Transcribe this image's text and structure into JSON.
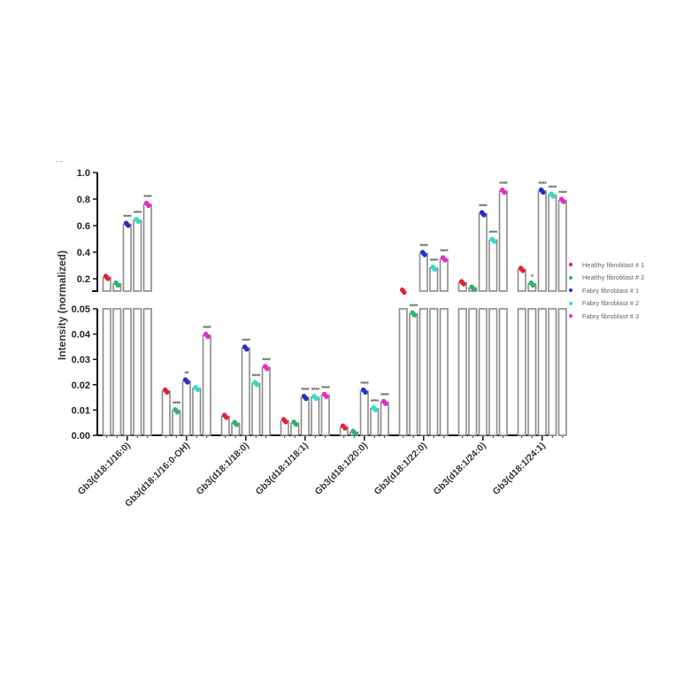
{
  "chart_data": {
    "type": "bar",
    "title": "",
    "xlabel": "",
    "ylabel": "Intensity (normalized)",
    "y_axis_break": {
      "lower_range": [
        0,
        0.05
      ],
      "upper_range": [
        0.1,
        1.0
      ],
      "lower_ticks": [
        "0.00",
        "0.01",
        "0.02",
        "0.03",
        "0.04",
        "0.05"
      ],
      "upper_ticks": [
        "0.2",
        "0.4",
        "0.6",
        "0.8",
        "1.0"
      ]
    },
    "categories": [
      "Gb3(d18:1/16:0)",
      "Gb3(d18:1/16:0-OH)",
      "Gb3(d18:1/18:0)",
      "Gb3(d18:1/18:1)",
      "Gb3(d18:1/20:0)",
      "Gb3(d18:1/22:0)",
      "Gb3(d18:1/24:0)",
      "Gb3(d18:1/24:1)"
    ],
    "series": [
      {
        "name": "Healthy fibroblast # 1",
        "color": "#e8202a",
        "values": [
          0.21,
          0.0175,
          0.0075,
          0.0058,
          0.0033,
          0.06,
          0.17,
          0.27
        ]
      },
      {
        "name": "Healthy fibroblast # 2",
        "color": "#2fb36a",
        "values": [
          0.16,
          0.0097,
          0.0047,
          0.0048,
          0.0012,
          0.048,
          0.13,
          0.16
        ]
      },
      {
        "name": "Fabry fibroblast # 1",
        "color": "#2430c8",
        "values": [
          0.61,
          0.0215,
          0.0345,
          0.015,
          0.0175,
          0.39,
          0.69,
          0.86
        ]
      },
      {
        "name": "Fabry fibroblast # 2",
        "color": "#2ee0c8",
        "values": [
          0.64,
          0.0185,
          0.0205,
          0.015,
          0.0105,
          0.28,
          0.49,
          0.83
        ]
      },
      {
        "name": "Fabry fibroblast # 3",
        "color": "#e82ac8",
        "values": [
          0.76,
          0.0395,
          0.0268,
          0.0158,
          0.013,
          0.35,
          0.86,
          0.79
        ]
      }
    ],
    "significance": [
      [
        "",
        "",
        "****",
        "****",
        "****"
      ],
      [
        "",
        "****",
        "**",
        "",
        "****"
      ],
      [
        "",
        "",
        "****",
        "****",
        "****"
      ],
      [
        "",
        "",
        "****",
        "****",
        "****"
      ],
      [
        "",
        "",
        "****",
        "****",
        "****"
      ],
      [
        "",
        "****",
        "****",
        "****",
        "****"
      ],
      [
        "",
        "",
        "****",
        "****",
        "****"
      ],
      [
        "",
        "*",
        "****",
        "****",
        "****"
      ]
    ],
    "legend_position": "right",
    "grid": false
  },
  "legend": {
    "items": [
      {
        "label": "Healthy fibroblast # 1",
        "color": "#e8202a"
      },
      {
        "label": "Healthy fibroblast # 2",
        "color": "#2fb36a"
      },
      {
        "label": "Fabry fibroblast # 1",
        "color": "#2430c8"
      },
      {
        "label": "Fabry fibroblast # 2",
        "color": "#2ee0c8"
      },
      {
        "label": "Fabry fibroblast # 3",
        "color": "#e82ac8"
      }
    ]
  },
  "corner_mark": "- -"
}
